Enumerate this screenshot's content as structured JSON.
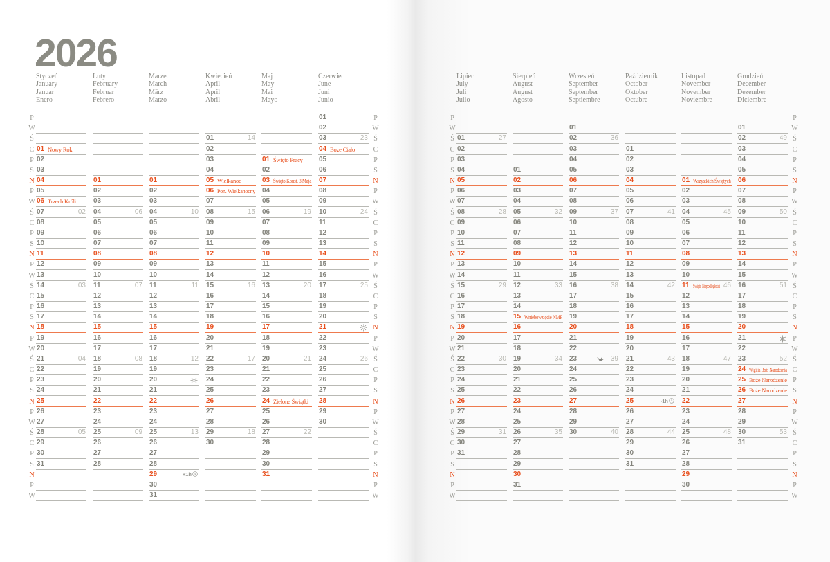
{
  "year": "2026",
  "weekday_letters": [
    "P",
    "W",
    "Ś",
    "C",
    "P",
    "S",
    "N"
  ],
  "colors": {
    "accent": "#e8501e",
    "text": "#84847c",
    "week": "#b9b9b2"
  },
  "months": [
    {
      "names": [
        "Styczeń",
        "January",
        "Januar",
        "Enero"
      ],
      "start": 3,
      "days": 31,
      "weeks": {
        "7": "02",
        "14": "03",
        "21": "04",
        "28": "05"
      },
      "holidays": {
        "1": "Nowy Rok",
        "6": "Trzech Króli"
      },
      "marks": {}
    },
    {
      "names": [
        "Luty",
        "February",
        "Februar",
        "Febrero"
      ],
      "start": 6,
      "days": 28,
      "weeks": {
        "4": "06",
        "11": "07",
        "18": "08",
        "25": "09"
      },
      "holidays": {},
      "marks": {}
    },
    {
      "names": [
        "Marzec",
        "March",
        "März",
        "Marzo"
      ],
      "start": 6,
      "days": 31,
      "weeks": {
        "4": "10",
        "11": "11",
        "18": "12",
        "25": "13"
      },
      "holidays": {},
      "marks": {
        "20": {
          "text": "",
          "icon": "sun-icon"
        },
        "29": {
          "text": "+1h",
          "icon": "clock-icon"
        }
      }
    },
    {
      "names": [
        "Kwiecień",
        "April",
        "April",
        "Abril"
      ],
      "start": 2,
      "days": 30,
      "weeks": {
        "1": "14",
        "8": "15",
        "15": "16",
        "22": "17",
        "29": "18"
      },
      "holidays": {
        "5": "Wielkanoc",
        "6": "Pon. Wielkanocny"
      },
      "marks": {}
    },
    {
      "names": [
        "Maj",
        "May",
        "Mai",
        "Mayo"
      ],
      "start": 4,
      "days": 31,
      "weeks": {
        "6": "19",
        "13": "20",
        "20": "21",
        "27": "22"
      },
      "holidays": {
        "1": "Święto Pracy",
        "3": "Święto Konst. 3 Maja",
        "24": "Zielone Świątki"
      },
      "marks": {}
    },
    {
      "names": [
        "Czerwiec",
        "June",
        "Juni",
        "Junio"
      ],
      "start": 0,
      "days": 30,
      "weeks": {
        "3": "23",
        "10": "24",
        "17": "25",
        "24": "26"
      },
      "holidays": {
        "4": "Boże Ciało"
      },
      "marks": {
        "21": {
          "text": "",
          "icon": "sun-icon"
        }
      }
    },
    {
      "names": [
        "Lipiec",
        "July",
        "Juli",
        "Julio"
      ],
      "start": 2,
      "days": 31,
      "weeks": {
        "1": "27",
        "8": "28",
        "15": "29",
        "22": "30",
        "29": "31"
      },
      "holidays": {},
      "marks": {}
    },
    {
      "names": [
        "Sierpień",
        "August",
        "August",
        "Agosto"
      ],
      "start": 5,
      "days": 31,
      "weeks": {
        "5": "32",
        "12": "33",
        "19": "34",
        "26": "35"
      },
      "holidays": {
        "15": "Wniebowzięcie NMP"
      },
      "marks": {}
    },
    {
      "names": [
        "Wrzesień",
        "September",
        "September",
        "Septiembre"
      ],
      "start": 1,
      "days": 30,
      "weeks": {
        "2": "36",
        "9": "37",
        "16": "38",
        "23": "39",
        "30": "40"
      },
      "holidays": {},
      "marks": {
        "23": {
          "text": "",
          "icon": "bird-icon"
        }
      }
    },
    {
      "names": [
        "Październik",
        "October",
        "Oktober",
        "Octubre"
      ],
      "start": 3,
      "days": 31,
      "weeks": {
        "7": "41",
        "14": "42",
        "21": "43",
        "28": "44"
      },
      "holidays": {},
      "marks": {
        "25": {
          "text": "-1h",
          "icon": "clock-icon"
        }
      }
    },
    {
      "names": [
        "Listopad",
        "November",
        "November",
        "Noviembre"
      ],
      "start": 6,
      "days": 30,
      "weeks": {
        "4": "45",
        "11": "46",
        "18": "47",
        "25": "48"
      },
      "holidays": {
        "1": "Wszystkich Świętych",
        "11": "Święto Niepodległości"
      },
      "marks": {}
    },
    {
      "names": [
        "Grudzień",
        "December",
        "Dezember",
        "Diciembre"
      ],
      "start": 1,
      "days": 31,
      "weeks": {
        "2": "49",
        "9": "50",
        "16": "51",
        "23": "52",
        "30": "53"
      },
      "holidays": {
        "24": "Wigilia Boż. Narodzenia",
        "25": "Boże Narodzenie",
        "26": "Boże Narodzenie"
      },
      "marks": {
        "21": {
          "text": "",
          "icon": "snowflake-icon"
        }
      }
    }
  ]
}
